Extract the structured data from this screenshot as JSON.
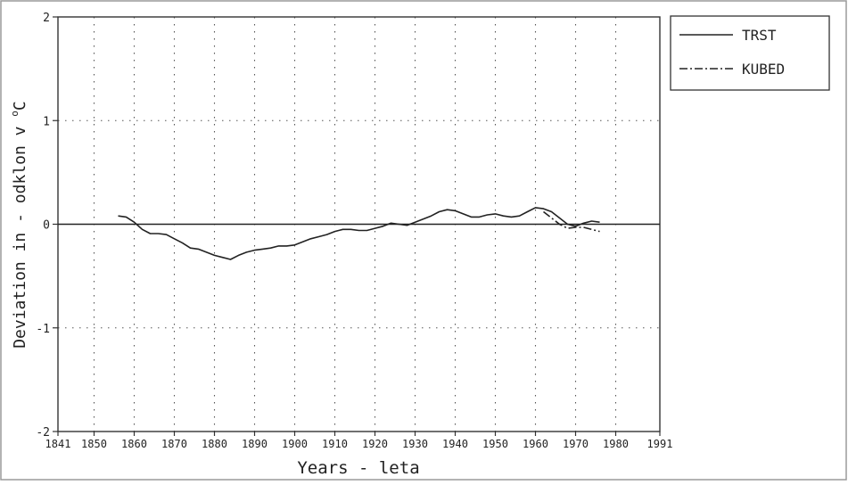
{
  "chart_data": {
    "type": "line",
    "title": "",
    "xlabel": "Years - leta",
    "ylabel": "Deviation in - odklon v °C",
    "ylabel_main": "Deviation in - odklon v ",
    "ylabel_unit_deg": "o",
    "ylabel_unit_c": "C",
    "xlim": [
      1841,
      1991
    ],
    "ylim": [
      -2,
      2
    ],
    "x_ticks": [
      "1841",
      "1850",
      "1860",
      "1870",
      "1880",
      "1890",
      "1900",
      "1910",
      "1920",
      "1930",
      "1940",
      "1950",
      "1960",
      "1970",
      "1980",
      "1991"
    ],
    "x_tick_values": [
      1841,
      1850,
      1860,
      1870,
      1880,
      1890,
      1900,
      1910,
      1920,
      1930,
      1940,
      1950,
      1960,
      1970,
      1980,
      1991
    ],
    "y_ticks": [
      "2",
      "1",
      "0",
      "-1",
      "-2"
    ],
    "y_tick_values": [
      2,
      1,
      0,
      -1,
      -2
    ],
    "grid": true,
    "grid_style": "dotted",
    "zero_line": true,
    "legend_position": "top-right",
    "series": [
      {
        "name": "TRST",
        "line_style": "solid",
        "x": [
          1856,
          1858,
          1860,
          1862,
          1864,
          1866,
          1868,
          1870,
          1872,
          1874,
          1876,
          1878,
          1880,
          1882,
          1884,
          1886,
          1888,
          1890,
          1892,
          1894,
          1896,
          1898,
          1900,
          1902,
          1904,
          1906,
          1908,
          1910,
          1912,
          1914,
          1916,
          1918,
          1920,
          1922,
          1924,
          1926,
          1928,
          1930,
          1932,
          1934,
          1936,
          1938,
          1940,
          1942,
          1944,
          1946,
          1948,
          1950,
          1952,
          1954,
          1956,
          1958,
          1960,
          1962,
          1964,
          1966,
          1968,
          1970,
          1972,
          1974,
          1976
        ],
        "y": [
          0.08,
          0.07,
          0.02,
          -0.05,
          -0.09,
          -0.09,
          -0.1,
          -0.14,
          -0.18,
          -0.23,
          -0.24,
          -0.27,
          -0.3,
          -0.32,
          -0.34,
          -0.3,
          -0.27,
          -0.25,
          -0.24,
          -0.23,
          -0.21,
          -0.21,
          -0.2,
          -0.17,
          -0.14,
          -0.12,
          -0.1,
          -0.07,
          -0.05,
          -0.05,
          -0.06,
          -0.06,
          -0.04,
          -0.02,
          0.01,
          0.0,
          -0.01,
          0.02,
          0.05,
          0.08,
          0.12,
          0.14,
          0.13,
          0.1,
          0.07,
          0.07,
          0.09,
          0.1,
          0.08,
          0.07,
          0.08,
          0.12,
          0.16,
          0.15,
          0.12,
          0.06,
          0.0,
          -0.02,
          0.01,
          0.03,
          0.02
        ]
      },
      {
        "name": "KUBED",
        "line_style": "dash-dot",
        "x": [
          1962,
          1964,
          1966,
          1968,
          1970,
          1972,
          1974,
          1976
        ],
        "y": [
          0.12,
          0.06,
          0.0,
          -0.04,
          -0.03,
          -0.03,
          -0.05,
          -0.07
        ]
      }
    ]
  }
}
